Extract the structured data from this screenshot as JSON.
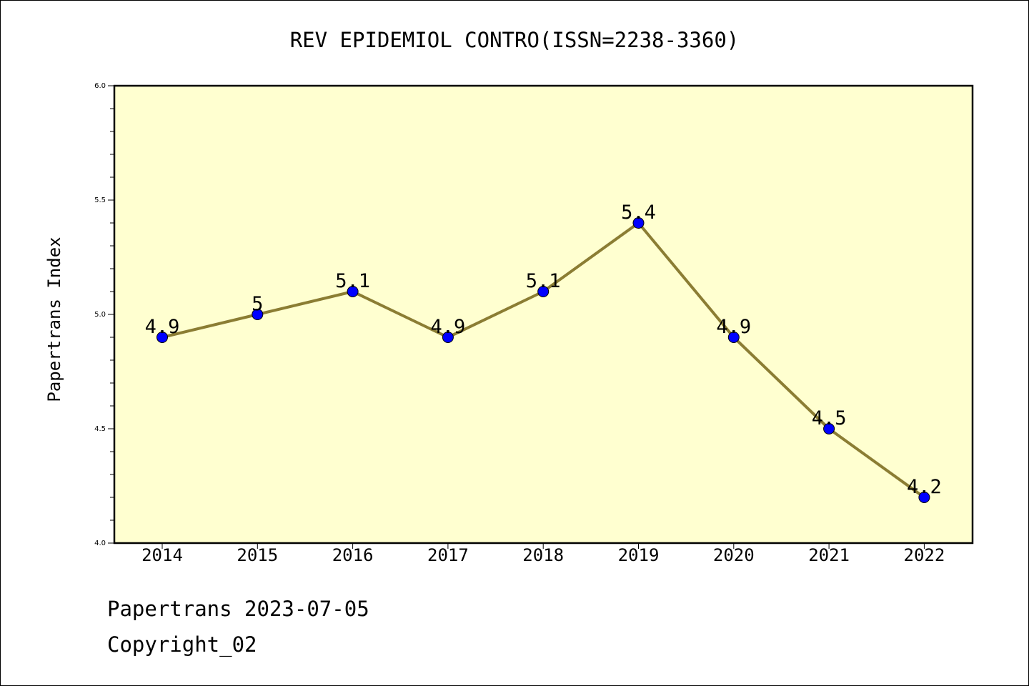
{
  "chart_data": {
    "type": "line",
    "title": "REV EPIDEMIOL CONTRO(ISSN=2238-3360)",
    "ylabel": "Papertrans Index",
    "xlabel": "",
    "categories": [
      "2014",
      "2015",
      "2016",
      "2017",
      "2018",
      "2019",
      "2020",
      "2021",
      "2022"
    ],
    "values": [
      4.9,
      5.0,
      5.1,
      4.9,
      5.1,
      5.4,
      4.9,
      4.5,
      4.2
    ],
    "data_labels": [
      "4.9",
      "5",
      "5.1",
      "4.9",
      "5.1",
      "5.4",
      "4.9",
      "4.5",
      "4.2"
    ],
    "ylim": [
      4.0,
      6.0
    ],
    "yticks": [
      "4.0",
      "4.5",
      "5.0",
      "5.5",
      "6.0"
    ],
    "grid": false,
    "colors": {
      "plot_background": "#ffffd0",
      "line": "#8b7d33",
      "marker": "#0000ff"
    }
  },
  "footer": {
    "line1": "Papertrans 2023-07-05",
    "line2": "Copyright_02"
  }
}
